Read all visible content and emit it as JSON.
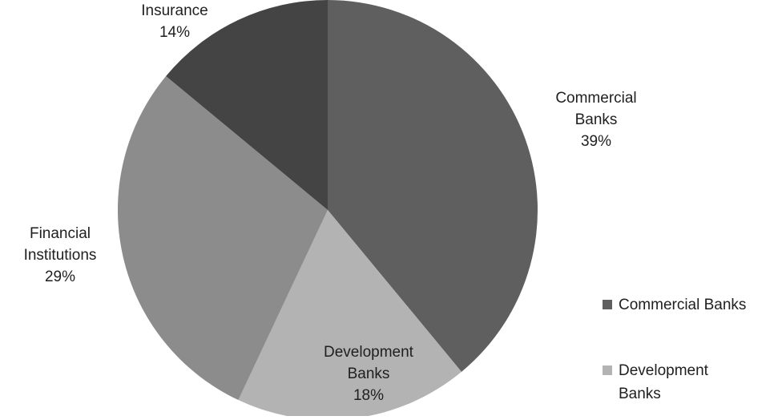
{
  "chart_data": {
    "type": "pie",
    "slices": [
      {
        "label_lines": [
          "Commercial",
          "Banks"
        ],
        "percent_text": "39%",
        "value": 39,
        "color": "#5f5f5f",
        "legend_label": [
          "Commercial Banks"
        ]
      },
      {
        "label_lines": [
          "Development",
          "Banks"
        ],
        "percent_text": "18%",
        "value": 18,
        "color": "#b3b3b3",
        "legend_label": [
          "Development",
          "Banks"
        ]
      },
      {
        "label_lines": [
          "Financial",
          "Institutions"
        ],
        "percent_text": "29%",
        "value": 29,
        "color": "#8c8c8c",
        "legend_label": []
      },
      {
        "label_lines": [
          "Insurance"
        ],
        "percent_text": "14%",
        "value": 14,
        "color": "#444444",
        "legend_label": []
      }
    ],
    "legend_position": "right"
  }
}
